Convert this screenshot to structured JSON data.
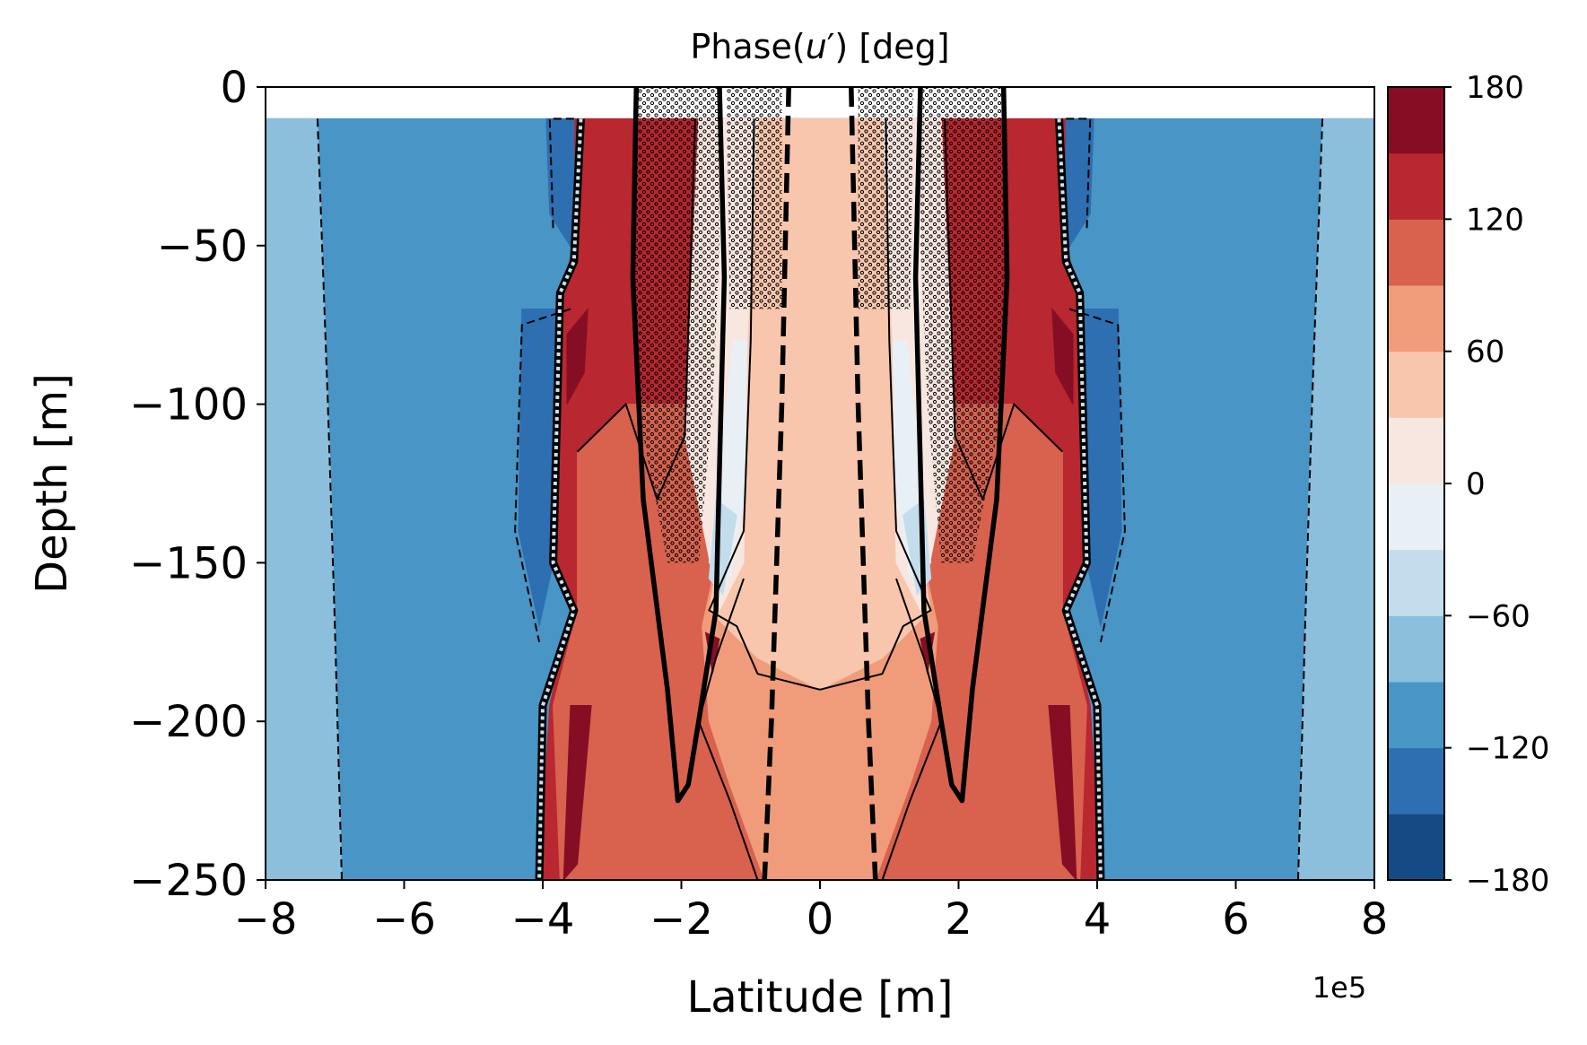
{
  "chart_data": {
    "type": "heatmap",
    "subtype": "filled-contour",
    "title_prefix": "Phase(",
    "title_var": "u",
    "title_prime": "′",
    "title_suffix": ") [deg]",
    "xlabel": "Latitude [m]",
    "ylabel": "Depth [m]",
    "x_offset_label": "1e5",
    "xlim": [
      -8,
      8
    ],
    "ylim": [
      -250,
      0
    ],
    "data_top": -10,
    "x_ticks": [
      -8,
      -6,
      -4,
      -2,
      0,
      2,
      4,
      6,
      8
    ],
    "y_ticks": [
      0,
      -50,
      -100,
      -150,
      -200,
      -250
    ],
    "colorbar": {
      "min": -180,
      "max": 180,
      "levels": [
        -180,
        -150,
        -120,
        -90,
        -60,
        -30,
        0,
        30,
        60,
        90,
        120,
        150,
        180
      ],
      "tick_values": [
        180,
        120,
        60,
        0,
        -60,
        -120,
        -180
      ],
      "colors": [
        "#144b84",
        "#2d6fb1",
        "#4895c6",
        "#8bbfdc",
        "#c3ddec",
        "#e8f0f6",
        "#f8e7e0",
        "#f8c6ac",
        "#f09c7b",
        "#d8624e",
        "#b92730",
        "#850e25"
      ]
    },
    "symmetric": true,
    "regions_right_half": [
      {
        "value": -100,
        "color_index": 2,
        "poly": [
          [
            0,
            -10
          ],
          [
            8,
            -10
          ],
          [
            8,
            -250
          ],
          [
            0,
            -250
          ]
        ]
      },
      {
        "value": -85,
        "color_index": 3,
        "poly": [
          [
            7.25,
            -10
          ],
          [
            8,
            -10
          ],
          [
            8,
            -250
          ],
          [
            6.9,
            -250
          ],
          [
            7.05,
            -130
          ]
        ]
      },
      {
        "value": 150,
        "color_index": 10,
        "poly": [
          [
            0,
            -10
          ],
          [
            3.6,
            -10
          ],
          [
            3.55,
            -50
          ],
          [
            3.75,
            -65
          ],
          [
            3.85,
            -150
          ],
          [
            3.6,
            -165
          ],
          [
            3.9,
            -195
          ],
          [
            4.05,
            -250
          ],
          [
            0,
            -250
          ]
        ]
      },
      {
        "value": 100,
        "color_index": 9,
        "poly": [
          [
            0,
            -100
          ],
          [
            2.8,
            -100
          ],
          [
            3.5,
            -115
          ],
          [
            3.5,
            -165
          ],
          [
            3.85,
            -195
          ],
          [
            3.75,
            -250
          ],
          [
            0,
            -250
          ]
        ]
      },
      {
        "value": 80,
        "color_index": 8,
        "poly": [
          [
            0,
            -140
          ],
          [
            1.5,
            -150
          ],
          [
            1.7,
            -170
          ],
          [
            1.6,
            -200
          ],
          [
            1.3,
            -220
          ],
          [
            0.8,
            -250
          ],
          [
            0,
            -250
          ]
        ]
      },
      {
        "value": 45,
        "color_index": 7,
        "poly": [
          [
            0,
            -10
          ],
          [
            0.9,
            -10
          ],
          [
            1.1,
            -90
          ],
          [
            1.4,
            -140
          ],
          [
            1.6,
            -165
          ],
          [
            0.9,
            -180
          ],
          [
            0,
            -190
          ]
        ]
      },
      {
        "value": 15,
        "color_index": 6,
        "poly": [
          [
            0.9,
            -10
          ],
          [
            1.75,
            -10
          ],
          [
            1.95,
            -110
          ],
          [
            1.45,
            -165
          ],
          [
            1.1,
            -150
          ],
          [
            1.05,
            -80
          ]
        ]
      },
      {
        "value": -15,
        "color_index": 5,
        "poly": [
          [
            1.05,
            -80
          ],
          [
            1.25,
            -80
          ],
          [
            1.45,
            -120
          ],
          [
            1.6,
            -150
          ],
          [
            1.3,
            -155
          ],
          [
            1.1,
            -130
          ]
        ]
      },
      {
        "value": -45,
        "color_index": 4,
        "poly": [
          [
            1.2,
            -135
          ],
          [
            1.5,
            -130
          ],
          [
            1.6,
            -155
          ],
          [
            1.4,
            -160
          ]
        ]
      },
      {
        "value": -130,
        "color_index": 1,
        "poly": [
          [
            3.55,
            -10
          ],
          [
            3.95,
            -10
          ],
          [
            3.9,
            -40
          ],
          [
            3.55,
            -52
          ]
        ]
      },
      {
        "value": -130,
        "color_index": 1,
        "poly": [
          [
            3.8,
            -70
          ],
          [
            4.3,
            -70
          ],
          [
            4.35,
            -140
          ],
          [
            4.05,
            -170
          ],
          [
            3.85,
            -150
          ]
        ]
      },
      {
        "value": 170,
        "color_index": 11,
        "poly": [
          [
            3.35,
            -70
          ],
          [
            3.65,
            -78
          ],
          [
            3.65,
            -100
          ],
          [
            3.4,
            -90
          ]
        ]
      },
      {
        "value": 170,
        "color_index": 11,
        "poly": [
          [
            3.3,
            -195
          ],
          [
            3.6,
            -195
          ],
          [
            3.7,
            -250
          ],
          [
            3.5,
            -245
          ]
        ]
      },
      {
        "value": 170,
        "color_index": 11,
        "poly": [
          [
            1.45,
            -174
          ],
          [
            1.65,
            -172
          ],
          [
            1.55,
            -185
          ]
        ]
      }
    ],
    "thick_solid_contours_right_half": [
      [
        [
          1.45,
          0
        ],
        [
          1.38,
          -60
        ],
        [
          1.45,
          -120
        ],
        [
          1.5,
          -165
        ],
        [
          1.75,
          -200
        ],
        [
          1.9,
          -220
        ],
        [
          2.05,
          -225
        ],
        [
          2.2,
          -190
        ],
        [
          2.55,
          -130
        ],
        [
          2.7,
          -60
        ],
        [
          2.65,
          0
        ]
      ]
    ],
    "thick_dashed_contours_right_half": [
      [
        [
          0.45,
          0
        ],
        [
          0.55,
          -100
        ],
        [
          0.7,
          -200
        ],
        [
          0.8,
          -250
        ]
      ]
    ],
    "thin_solid_contours_right_half": [
      [
        [
          0.95,
          -10
        ],
        [
          1.0,
          -80
        ],
        [
          1.1,
          -140
        ],
        [
          1.5,
          -160
        ],
        [
          1.6,
          -165
        ],
        [
          1.2,
          -170
        ],
        [
          0.9,
          -185
        ],
        [
          0,
          -190
        ]
      ],
      [
        [
          1.8,
          -10
        ],
        [
          1.95,
          -110
        ],
        [
          2.35,
          -130
        ],
        [
          2.8,
          -100
        ],
        [
          3.5,
          -115
        ]
      ],
      [
        [
          1.1,
          -155
        ],
        [
          1.5,
          -180
        ],
        [
          1.75,
          -200
        ],
        [
          1.3,
          -225
        ],
        [
          0.9,
          -250
        ]
      ]
    ],
    "thin_dashed_contours_right_half": [
      [
        [
          7.25,
          -10
        ],
        [
          7.1,
          -100
        ],
        [
          7.0,
          -170
        ],
        [
          6.9,
          -250
        ]
      ],
      [
        [
          3.6,
          -70
        ],
        [
          4.3,
          -75
        ],
        [
          4.4,
          -140
        ],
        [
          4.05,
          -175
        ]
      ],
      [
        [
          3.55,
          -10
        ],
        [
          3.9,
          -10
        ],
        [
          3.85,
          -45
        ]
      ]
    ],
    "hatched_regions_right_half": [
      [
        [
          1.45,
          0
        ],
        [
          2.65,
          0
        ],
        [
          2.7,
          -60
        ],
        [
          2.55,
          -110
        ],
        [
          2.2,
          -150
        ],
        [
          1.75,
          -150
        ],
        [
          1.55,
          -100
        ],
        [
          1.45,
          -50
        ]
      ],
      [
        [
          0.55,
          0
        ],
        [
          1.35,
          0
        ],
        [
          1.3,
          -70
        ],
        [
          0.55,
          -70
        ]
      ]
    ],
    "dotted_band_right_half": [
      [
        3.45,
        -10
      ],
      [
        3.55,
        -55
      ],
      [
        3.75,
        -65
      ],
      [
        3.85,
        -150
      ],
      [
        3.55,
        -165
      ],
      [
        4.0,
        -195
      ],
      [
        4.05,
        -250
      ]
    ]
  }
}
